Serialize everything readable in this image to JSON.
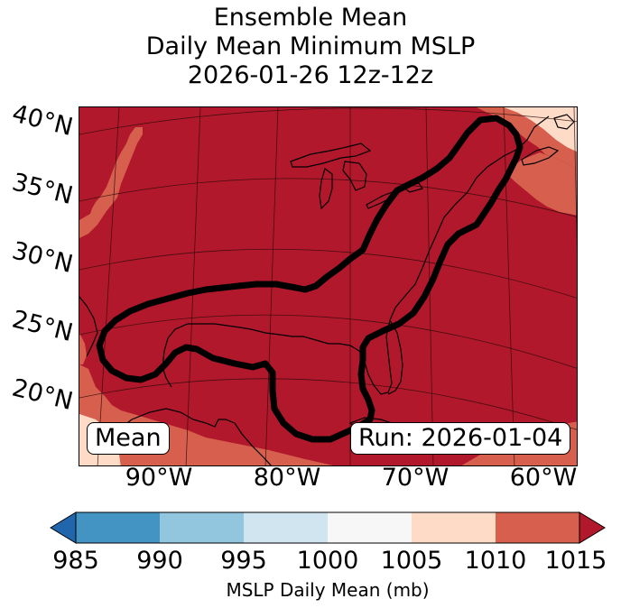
{
  "title": {
    "line1": "Ensemble Mean",
    "line2": "Daily Mean Minimum MSLP",
    "line3": "2026-01-26 12z-12z"
  },
  "map": {
    "lat_labels": [
      "40°N",
      "35°N",
      "30°N",
      "25°N",
      "20°N"
    ],
    "lon_labels": [
      "90°W",
      "80°W",
      "70°W",
      "60°W"
    ],
    "left_box": "Mean",
    "right_box": "Run: 2026-01-04"
  },
  "colorbar": {
    "ticks": [
      "985",
      "990",
      "995",
      "1000",
      "1005",
      "1010",
      "1015"
    ],
    "label": "MSLP Daily Mean (mb)",
    "colors": {
      "under": "#2166ac",
      "b985_990": "#4393c3",
      "b990_995": "#92c5de",
      "b995_1000": "#d1e5f0",
      "b1000_1005": "#f7f7f7",
      "b1005_1010": "#fddbc7",
      "b1010_1015": "#d6604d",
      "over": "#b2182b"
    }
  }
}
